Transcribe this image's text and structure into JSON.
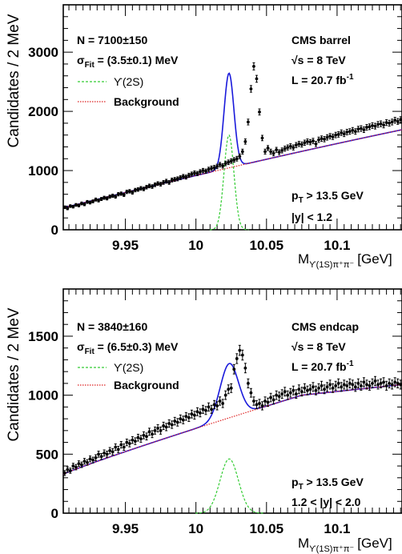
{
  "chart_data": [
    {
      "type": "scatter",
      "ylabel": "Candidates / 2 MeV",
      "xlabel_main": "M",
      "xlabel_sub": "ϒ(1S)π⁺π⁻",
      "xlabel_unit": "[GeV]",
      "xlim": [
        9.906,
        10.146
      ],
      "ylim": [
        0,
        3800
      ],
      "yticks": [
        0,
        1000,
        2000,
        3000
      ],
      "ytick_labels": [
        "0",
        "1000",
        "2000",
        "3000"
      ],
      "xticks": [
        9.95,
        10.0,
        10.05,
        10.1
      ],
      "xtick_labels": [
        "9.95",
        "10",
        "10.05",
        "10.1"
      ],
      "legend": {
        "n_events": "N = 7100±150",
        "sigma_sym": "σ",
        "sigma_sub": "Fit",
        "sigma_val": " = (3.5±0.1) MeV",
        "signal": "ϒ(2S)",
        "background": "Background"
      },
      "info": {
        "title": "CMS barrel",
        "energy": "√s = 8 TeV",
        "lumi": "L = 20.7 fb",
        "lumi_sup": "-1"
      },
      "cuts": {
        "pt_sym": "p",
        "pt_sub": "T",
        "pt_val": " > 13.5 GeV",
        "rapidity": "|y| < 1.2"
      },
      "model": {
        "bkg_at_xmin": 370,
        "bkg_slope_per_gev": 6000,
        "signal_mean": 10.0234,
        "signal_sigma": 0.0035,
        "signal_peak": 1600
      },
      "points_x_start": 9.907,
      "points_x_step": 0.002,
      "points_y": [
        380,
        360,
        400,
        390,
        420,
        410,
        445,
        430,
        470,
        460,
        480,
        510,
        495,
        520,
        540,
        530,
        560,
        575,
        560,
        600,
        610,
        590,
        640,
        650,
        630,
        670,
        680,
        700,
        690,
        720,
        740,
        730,
        760,
        780,
        770,
        800,
        820,
        800,
        840,
        850,
        860,
        880,
        900,
        890,
        920,
        940,
        960,
        950,
        980,
        1000,
        990,
        1020,
        1040,
        1050,
        1070,
        1100,
        1080,
        1120,
        1140,
        1160,
        1180,
        1200,
        1240,
        1320,
        1490,
        1820,
        2380,
        2760,
        2550,
        1990,
        1550,
        1320,
        1380,
        1320,
        1290,
        1350,
        1310,
        1340,
        1370,
        1390,
        1410,
        1390,
        1430,
        1450,
        1440,
        1470,
        1490,
        1480,
        1500,
        1450,
        1520,
        1540,
        1530,
        1560,
        1580,
        1570,
        1600,
        1610,
        1640,
        1620,
        1650,
        1660,
        1680,
        1660,
        1700,
        1710,
        1690,
        1730,
        1740,
        1760,
        1750,
        1780,
        1790,
        1770,
        1810,
        1800,
        1820,
        1850,
        1830,
        1860
      ]
    },
    {
      "type": "scatter",
      "ylabel": "Candidates / 2 MeV",
      "xlabel_main": "M",
      "xlabel_sub": "ϒ(1S)π⁺π⁻",
      "xlabel_unit": "[GeV]",
      "xlim": [
        9.906,
        10.146
      ],
      "ylim": [
        0,
        1900
      ],
      "yticks": [
        0,
        500,
        1000,
        1500
      ],
      "ytick_labels": [
        "0",
        "500",
        "1000",
        "1500"
      ],
      "xticks": [
        9.95,
        10.0,
        10.05,
        10.1
      ],
      "xtick_labels": [
        "9.95",
        "10",
        "10.05",
        "10.1"
      ],
      "legend": {
        "n_events": "N = 3840±160",
        "sigma_sym": "σ",
        "sigma_sub": "Fit",
        "sigma_val": " = (6.5±0.3) MeV",
        "signal": "ϒ(2S)",
        "background": "Background"
      },
      "info": {
        "title": "CMS endcap",
        "energy": "√s = 8 TeV",
        "lumi": "L = 20.7 fb",
        "lumi_sup": "-1"
      },
      "cuts": {
        "pt_sym": "p",
        "pt_sub": "T",
        "pt_val": " > 13.5 GeV",
        "rapidity": "1.2 < |y| < 2.0"
      },
      "model": {
        "bkg_at_xmin": 330,
        "bkg_at_knee": 1000,
        "bkg_knee_x": 10.075,
        "bkg_at_xmax": 1090,
        "signal_mean": 10.0236,
        "signal_sigma": 0.0065,
        "signal_peak": 460
      },
      "points_x_start": 9.907,
      "points_x_step": 0.002,
      "points_y": [
        340,
        370,
        360,
        400,
        390,
        420,
        410,
        440,
        430,
        460,
        450,
        470,
        500,
        480,
        510,
        500,
        530,
        520,
        560,
        540,
        580,
        560,
        600,
        590,
        620,
        610,
        640,
        630,
        660,
        650,
        690,
        670,
        700,
        720,
        700,
        740,
        730,
        760,
        750,
        780,
        770,
        800,
        790,
        820,
        810,
        840,
        830,
        860,
        850,
        880,
        870,
        900,
        880,
        920,
        910,
        950,
        930,
        1000,
        1050,
        1060,
        1220,
        1310,
        1380,
        1340,
        1230,
        1100,
        1020,
        950,
        920,
        930,
        910,
        950,
        940,
        980,
        960,
        1000,
        990,
        1010,
        1030,
        1000,
        1020,
        1040,
        1010,
        1050,
        1030,
        1060,
        1040,
        1050,
        1070,
        1040,
        1060,
        1080,
        1050,
        1070,
        1090,
        1060,
        1080,
        1100,
        1070,
        1090,
        1080,
        1100,
        1090,
        1070,
        1100,
        1080,
        1110,
        1090,
        1080,
        1100,
        1120,
        1090,
        1100,
        1110,
        1080,
        1100,
        1090,
        1110,
        1100,
        1090
      ]
    }
  ]
}
